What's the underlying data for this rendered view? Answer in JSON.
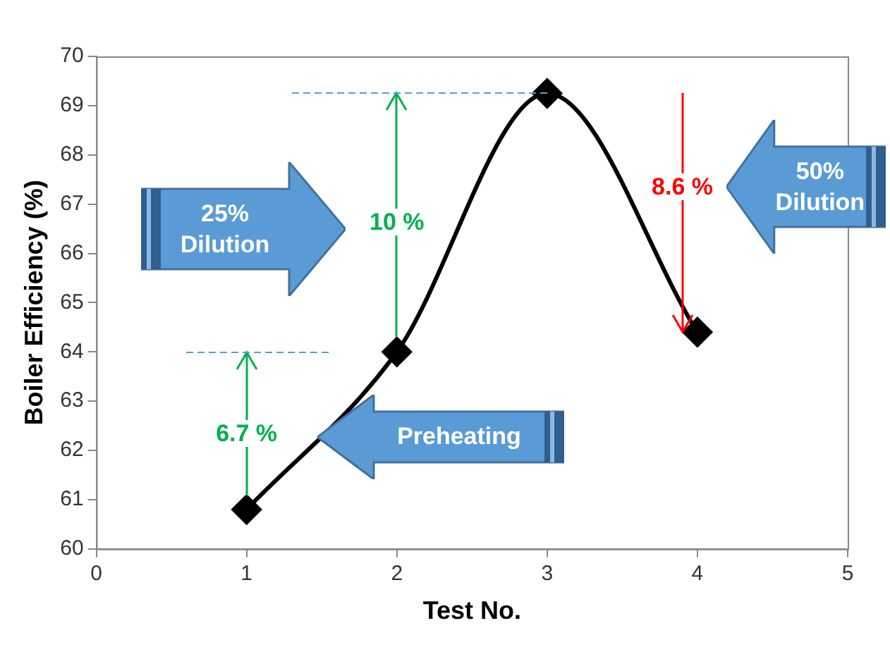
{
  "chart_data": {
    "type": "line",
    "xlabel": "Test No.",
    "ylabel": "Boiler Efficiency (%)",
    "x": [
      1,
      2,
      3,
      4
    ],
    "series": [
      {
        "color": "#000000",
        "values": [
          60.8,
          64.0,
          69.25,
          64.4
        ]
      }
    ],
    "xlim": [
      0,
      5
    ],
    "xticks": [
      0,
      1,
      2,
      3,
      4,
      5
    ],
    "ylim": [
      60,
      70
    ],
    "yticks": [
      60,
      61,
      62,
      63,
      64,
      65,
      66,
      67,
      68,
      69,
      70
    ],
    "marker": "diamond",
    "line_style": "solid",
    "annotations": [
      "6.7 %",
      "10 %",
      "8.6 %",
      "25% Dilution",
      "50% Dilution",
      "Preheating"
    ]
  }
}
